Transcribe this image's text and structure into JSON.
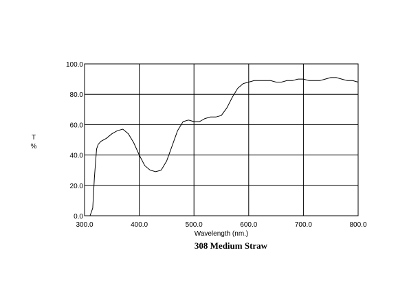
{
  "chart_data": {
    "type": "line",
    "title": "308 Medium Straw",
    "xlabel": "Wavelength (nm.)",
    "ylabel_top": "T",
    "ylabel_bottom": "%",
    "xlim": [
      300,
      800
    ],
    "ylim": [
      0,
      100
    ],
    "grid": true,
    "x_ticks": [
      "300.0",
      "400.0",
      "500.0",
      "600.0",
      "700.0",
      "800.0"
    ],
    "y_ticks": [
      "0.0",
      "20.0",
      "40.0",
      "60.0",
      "80.0",
      "100.0"
    ],
    "series": [
      {
        "x": [
          300,
          310,
          315,
          318,
          322,
          325,
          330,
          340,
          350,
          360,
          370,
          380,
          390,
          400,
          410,
          420,
          430,
          440,
          450,
          460,
          470,
          480,
          490,
          500,
          510,
          520,
          530,
          540,
          550,
          560,
          570,
          580,
          590,
          600,
          610,
          620,
          630,
          640,
          650,
          660,
          670,
          680,
          690,
          700,
          710,
          720,
          730,
          740,
          750,
          760,
          770,
          780,
          790,
          800
        ],
        "y": [
          0,
          0,
          5,
          25,
          44,
          47,
          49,
          51,
          54,
          56,
          57,
          54,
          48,
          40,
          33,
          30,
          29,
          30,
          36,
          46,
          56,
          62,
          63,
          62,
          62,
          64,
          65,
          65,
          66,
          71,
          78,
          84,
          87,
          88,
          89,
          89,
          89,
          89,
          88,
          88,
          89,
          89,
          90,
          90,
          89,
          89,
          89,
          90,
          91,
          91,
          90,
          89,
          89,
          88
        ]
      }
    ]
  }
}
